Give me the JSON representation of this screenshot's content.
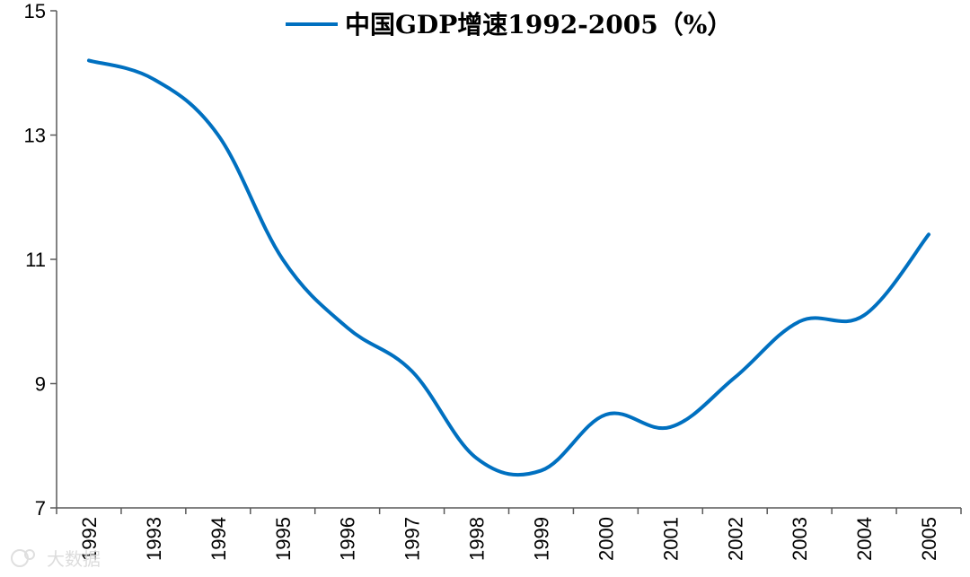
{
  "chart_data": {
    "type": "line",
    "title": "中国GDP增速1992-2005（%）",
    "xlabel": "",
    "ylabel": "",
    "ylim": [
      7,
      15
    ],
    "yticks": [
      7,
      9,
      11,
      13,
      15
    ],
    "categories": [
      "1992",
      "1993",
      "1994",
      "1995",
      "1996",
      "1997",
      "1998",
      "1999",
      "2000",
      "2001",
      "2002",
      "2003",
      "2004",
      "2005"
    ],
    "series": [
      {
        "name": "中国GDP增速1992-2005（%）",
        "values": [
          14.2,
          13.9,
          13.0,
          11.0,
          9.9,
          9.2,
          7.8,
          7.6,
          8.5,
          8.3,
          9.1,
          10.0,
          10.1,
          11.4
        ]
      }
    ],
    "legend": "top-center",
    "grid": false,
    "colors": {
      "line": "#0070C0",
      "axis": "#595959"
    }
  },
  "watermark": {
    "logo_text": "大数据"
  }
}
